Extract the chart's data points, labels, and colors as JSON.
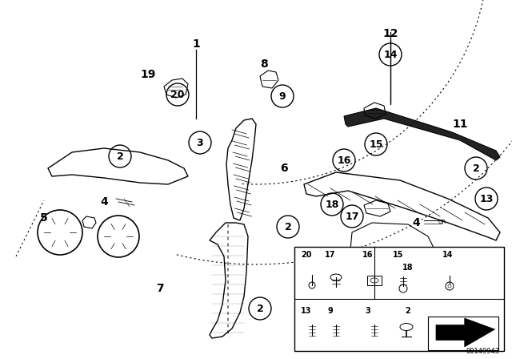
{
  "bg_color": "#ffffff",
  "part_number": "00149943",
  "fig_width": 6.4,
  "fig_height": 4.48,
  "dpi": 100
}
